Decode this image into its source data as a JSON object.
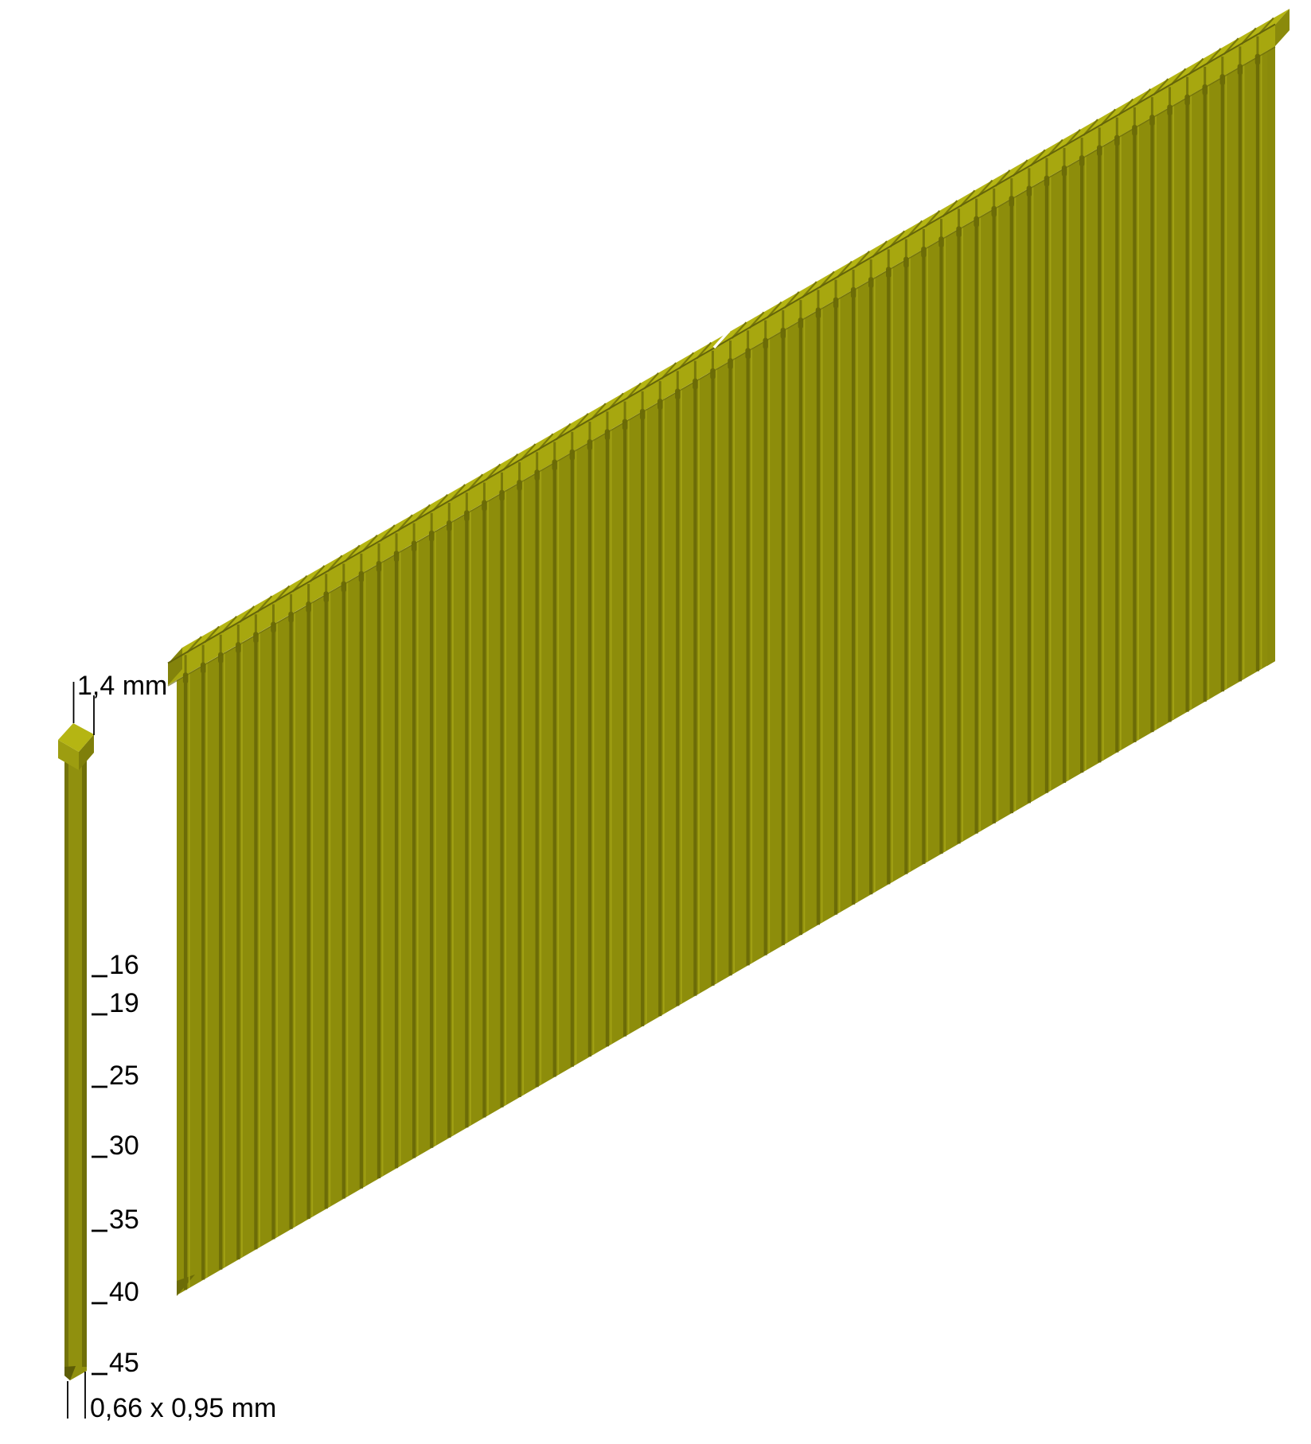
{
  "figure": {
    "kind": "fastener-product-illustration"
  },
  "dimension_labels": {
    "head_width": "1,4 mm",
    "shank_cross_section": "0,66 x 0,95 mm"
  },
  "length_marks": {
    "items": [
      {
        "value": "16"
      },
      {
        "value": "19"
      },
      {
        "value": "25"
      },
      {
        "value": "30"
      },
      {
        "value": "35"
      },
      {
        "value": "40"
      },
      {
        "value": "45"
      }
    ]
  },
  "strip": {
    "nail_count": 63
  },
  "colors": {
    "background": "#ffffff",
    "text": "#000000",
    "head_top_face": "#b5b513",
    "head_front_face": "#a7a70f",
    "body_front": "#8d8d0b",
    "groove_dark": "#6c6c07",
    "groove_highlight": "#a2a214",
    "separator": "#79790a",
    "end_cap_left": "#83830b",
    "end_cap_right": "#8a8a0b",
    "edge_shadow": "#5d5d06",
    "nail_head_left_face": "#9d9d10",
    "nail_head_right_face": "#7f7f0a",
    "shank_main": "#90900e",
    "shank_left_edge": "#73730a",
    "shank_right_edge": "#6f6f08",
    "tip_facet": "#5d5d06"
  }
}
